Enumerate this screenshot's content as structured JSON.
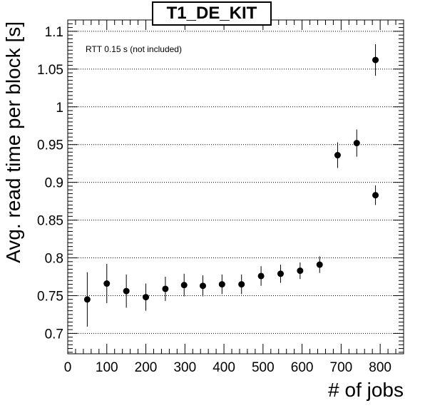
{
  "chart_data": {
    "type": "scatter",
    "title": "T1_DE_KIT",
    "xlabel": "# of jobs",
    "ylabel": "Avg. read time per block [s]",
    "annotation": "RTT 0.15 s (not included)",
    "xlim": [
      0,
      860
    ],
    "ylim": [
      0.673,
      1.115
    ],
    "x_ticks": [
      0,
      100,
      200,
      300,
      400,
      500,
      600,
      700,
      800
    ],
    "y_ticks": [
      0.7,
      0.75,
      0.8,
      0.85,
      0.9,
      0.95,
      1.0,
      1.05,
      1.1
    ],
    "y_tick_labels": [
      "0.7",
      "0.75",
      "0.8",
      "0.85",
      "0.9",
      "0.95",
      "1",
      "1.05",
      "1.1"
    ],
    "grid": "horizontal-dotted",
    "color": "#000000",
    "points": [
      {
        "x": 50,
        "y": 0.745,
        "err": 0.036
      },
      {
        "x": 100,
        "y": 0.766,
        "err": 0.026
      },
      {
        "x": 150,
        "y": 0.756,
        "err": 0.022
      },
      {
        "x": 200,
        "y": 0.748,
        "err": 0.018
      },
      {
        "x": 250,
        "y": 0.759,
        "err": 0.016
      },
      {
        "x": 298,
        "y": 0.764,
        "err": 0.015
      },
      {
        "x": 346,
        "y": 0.763,
        "err": 0.014
      },
      {
        "x": 395,
        "y": 0.765,
        "err": 0.013
      },
      {
        "x": 445,
        "y": 0.765,
        "err": 0.013
      },
      {
        "x": 495,
        "y": 0.776,
        "err": 0.013
      },
      {
        "x": 545,
        "y": 0.779,
        "err": 0.012
      },
      {
        "x": 595,
        "y": 0.783,
        "err": 0.011
      },
      {
        "x": 645,
        "y": 0.791,
        "err": 0.011
      },
      {
        "x": 691,
        "y": 0.936,
        "err": 0.017
      },
      {
        "x": 740,
        "y": 0.952,
        "err": 0.018
      },
      {
        "x": 788,
        "y": 1.062,
        "err": 0.021
      },
      {
        "x": 788,
        "y": 0.883,
        "err": 0.013
      }
    ]
  }
}
